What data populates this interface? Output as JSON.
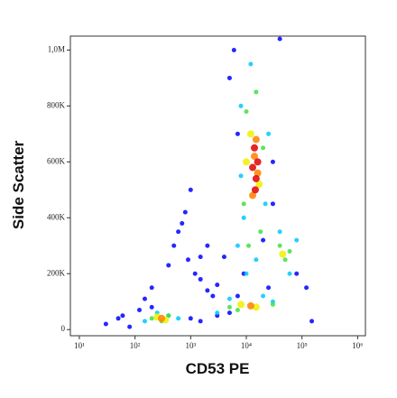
{
  "chart_data": {
    "type": "scatter",
    "x_label": "CD53 PE",
    "y_label": "Side Scatter",
    "xscale": "log",
    "xlim": [
      6.9,
      1380000
    ],
    "xticks": [
      {
        "value": 10,
        "label": "10¹"
      },
      {
        "value": 100,
        "label": "10²"
      },
      {
        "value": 1000,
        "label": "10³"
      },
      {
        "value": 10000,
        "label": "10⁴"
      },
      {
        "value": 100000,
        "label": "10⁵"
      },
      {
        "value": 1000000,
        "label": "10⁶"
      }
    ],
    "ylim": [
      -22000,
      1050000
    ],
    "yticks": [
      0,
      {
        "value": 200000,
        "label": "200K"
      },
      {
        "value": 400000,
        "label": "400K"
      },
      {
        "value": 600000,
        "label": "600K"
      },
      {
        "value": 800000,
        "label": "800K"
      },
      {
        "value": 1000000,
        "label": "1,0M"
      }
    ],
    "series": [
      {
        "color": "#0000ff",
        "x": [
          30,
          60,
          80,
          120,
          150,
          200,
          500,
          700,
          900,
          1200,
          1500,
          2000,
          2500,
          3000,
          800,
          1000,
          600,
          400,
          1500,
          2000,
          4000,
          5000,
          6000,
          7000,
          30000,
          40000,
          80000,
          120000,
          150000,
          20000,
          5000,
          7000,
          9000,
          25000,
          30000,
          3000,
          1500,
          1000,
          200,
          50
        ],
        "values": [
          20000,
          50000,
          10000,
          70000,
          110000,
          150000,
          300000,
          380000,
          250000,
          200000,
          180000,
          140000,
          120000,
          160000,
          420000,
          500000,
          350000,
          230000,
          260000,
          300000,
          260000,
          900000,
          1000000,
          700000,
          450000,
          1040000,
          200000,
          150000,
          30000,
          320000,
          60000,
          120000,
          200000,
          150000,
          600000,
          50000,
          30000,
          40000,
          80000,
          40000
        ]
      },
      {
        "color": "#00c8ff",
        "x": [
          150,
          250,
          400,
          600,
          3000,
          5000,
          20000,
          30000,
          7000,
          8000,
          25000,
          9000,
          60000,
          80000,
          40000,
          8000,
          22000,
          12000,
          15000,
          10000
        ],
        "values": [
          30000,
          60000,
          50000,
          40000,
          60000,
          110000,
          120000,
          100000,
          300000,
          800000,
          700000,
          400000,
          200000,
          320000,
          350000,
          550000,
          450000,
          950000,
          250000,
          200000
        ]
      },
      {
        "color": "#40e040",
        "x": [
          200,
          300,
          400,
          5000,
          7000,
          30000,
          9000,
          20000,
          10000,
          18000,
          50000,
          40000,
          60000,
          11000,
          15000
        ],
        "values": [
          40000,
          30000,
          50000,
          80000,
          70000,
          90000,
          450000,
          650000,
          780000,
          350000,
          250000,
          300000,
          280000,
          300000,
          850000
        ]
      },
      {
        "color": "#f0f000",
        "x": [
          250,
          350,
          8000,
          15000,
          12000,
          17000,
          45000,
          10000
        ],
        "values": [
          45000,
          35000,
          90000,
          80000,
          700000,
          520000,
          270000,
          600000
        ]
      },
      {
        "color": "#ff8000",
        "x": [
          300,
          12000,
          14000,
          16000,
          13000,
          15000
        ],
        "values": [
          40000,
          85000,
          620000,
          560000,
          480000,
          680000
        ]
      },
      {
        "color": "#e00000",
        "x": [
          13000,
          15000,
          14000,
          16000,
          14500
        ],
        "values": [
          580000,
          540000,
          650000,
          600000,
          500000
        ]
      }
    ]
  }
}
